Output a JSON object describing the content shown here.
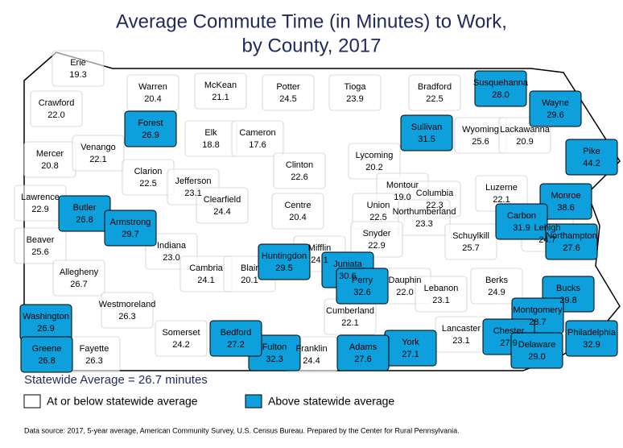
{
  "title": [
    "Average Commute Time (in Minutes) to Work,",
    "by County, 2017"
  ],
  "statewide_average": 26.7,
  "statewide_average_label": "Statewide Average = 26.7 minutes",
  "legend": {
    "at_or_below": {
      "label": "At or below statewide average",
      "color": "#ffffff"
    },
    "above": {
      "label": "Above statewide average",
      "color": "#0da0dc"
    }
  },
  "source": "Data source: 2017, 5-year average, American Community Survey, U.S. Census Bureau. Prepared by the Center for Rural Pennsylvania.",
  "counties": {
    "names": [
      "Erie",
      "Warren",
      "McKean",
      "Potter",
      "Tioga",
      "Bradford",
      "Susquehanna",
      "Wayne",
      "Crawford",
      "Forest",
      "Elk",
      "Cameron",
      "Sullivan",
      "Wyoming",
      "Lackawanna",
      "Pike",
      "Mercer",
      "Venango",
      "Clarion",
      "Jefferson",
      "Clinton",
      "Lycoming",
      "Montour",
      "Columbia",
      "Luzerne",
      "Monroe",
      "Lawrence",
      "Butler",
      "Armstrong",
      "Clearfield",
      "Centre",
      "Union",
      "Northumberland",
      "Carbon",
      "Northampton",
      "Beaver",
      "Snyder",
      "Schuylkill",
      "Lehigh",
      "Indiana",
      "Mifflin",
      "Juniata",
      "Allegheny",
      "Cambria",
      "Blair",
      "Huntingdon",
      "Perry",
      "Dauphin",
      "Lebanon",
      "Berks",
      "Bucks",
      "Westmoreland",
      "Washington",
      "Cumberland",
      "Montgomery",
      "Philadelphia",
      "Chester",
      "Delaware",
      "Lancaster",
      "York",
      "Adams",
      "Franklin",
      "Fulton",
      "Bedford",
      "Somerset",
      "Fayette",
      "Greene"
    ],
    "values": [
      19.3,
      20.4,
      21.1,
      24.5,
      23.9,
      22.5,
      28,
      29.6,
      22,
      26.9,
      18.8,
      17.6,
      31.5,
      25.6,
      20.9,
      44.2,
      20.8,
      22.1,
      22.5,
      23.1,
      22.6,
      20.2,
      19,
      22.3,
      22.1,
      38.6,
      22.9,
      26.8,
      29.7,
      24.4,
      20.4,
      22.5,
      23.3,
      31.9,
      27.6,
      25.6,
      22.9,
      25.7,
      24.7,
      23,
      24.1,
      30.6,
      26.7,
      24.1,
      20.1,
      29.5,
      32.6,
      22,
      23.1,
      24.9,
      29.8,
      26.3,
      26.9,
      22.1,
      28.7,
      32.9,
      27.9,
      29,
      23.1,
      27.1,
      27.6,
      24.4,
      32.3,
      27.2,
      24.2,
      26.3,
      26.8
    ],
    "value_labels": [
      "19.3",
      "20.4",
      "21.1",
      "24.5",
      "23.9",
      "22.5",
      "28.0",
      "29.6",
      "22.0",
      "26.9",
      "18.8",
      "17.6",
      "31.5",
      "25.6",
      "20.9",
      "44.2",
      "20.8",
      "22.1",
      "22.5",
      "23.1",
      "22.6",
      "20.2",
      "19.0",
      "22.3",
      "22.1",
      "38.6",
      "22.9",
      "26.8",
      "29.7",
      "24.4",
      "20.4",
      "22.5",
      "23.3",
      "31.9",
      "27.6",
      "25.6",
      "22.9",
      "25.7",
      "24.7",
      "23.0",
      "24.1",
      "30.6",
      "26.7",
      "24.1",
      "20.1",
      "29.5",
      "32.6",
      "22.0",
      "23.1",
      "24.9",
      "29.8",
      "26.3",
      "26.9",
      "22.1",
      "28.7",
      "32.9",
      "27.9",
      "29.0",
      "23.1",
      "27.1",
      "27.6",
      "24.4",
      "32.3",
      "27.2",
      "24.2",
      "26.3",
      "26.8"
    ]
  }
}
